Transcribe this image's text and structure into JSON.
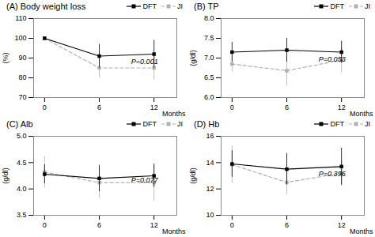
{
  "chart_data": [
    {
      "type": "line",
      "title": "(A) Body weight loss",
      "xlabel": "Months",
      "ylabel": "(%)",
      "x": [
        0,
        6,
        12
      ],
      "xlim": [
        -1.2,
        14.5
      ],
      "xticks": [
        0,
        6,
        12
      ],
      "ylim": [
        70,
        110
      ],
      "yticks": [
        70,
        80,
        90,
        100,
        110
      ],
      "series": [
        {
          "name": "DFT",
          "color": "#000000",
          "line_style": "solid",
          "marker": "square",
          "values": [
            100,
            91,
            92
          ],
          "errors": [
            0,
            6,
            7
          ]
        },
        {
          "name": "JI",
          "color": "#b0b0b0",
          "line_style": "dashed",
          "marker": "square",
          "values": [
            100,
            85,
            85
          ],
          "errors": [
            0,
            5,
            6
          ]
        }
      ],
      "annotations": [
        {
          "text": "P=0.001",
          "x": 9.5,
          "y": 87
        }
      ],
      "legend": "upper right"
    },
    {
      "type": "line",
      "title": "(B) TP",
      "xlabel": "Months",
      "ylabel": "(g/dl)",
      "x": [
        0,
        6,
        12
      ],
      "xlim": [
        -1.2,
        14.5
      ],
      "xticks": [
        0,
        6,
        12
      ],
      "ylim": [
        6.0,
        8.0
      ],
      "yticks": [
        {
          "value": 6.0,
          "label": "6.0"
        },
        6.5,
        {
          "value": 7.0,
          "label": "7.0"
        },
        7.5,
        {
          "value": 8.0,
          "label": "8.0"
        }
      ],
      "series": [
        {
          "name": "DFT",
          "color": "#000000",
          "line_style": "solid",
          "marker": "square",
          "values": [
            7.15,
            7.2,
            7.15
          ],
          "errors": [
            0.25,
            0.3,
            0.28
          ]
        },
        {
          "name": "JI",
          "color": "#b0b0b0",
          "line_style": "dashed",
          "marker": "square",
          "values": [
            6.85,
            6.68,
            6.95
          ],
          "errors": [
            0.2,
            0.38,
            0.32
          ]
        }
      ],
      "annotations": [
        {
          "text": "P=0.053",
          "x": 9.5,
          "y": 6.92
        }
      ],
      "legend": "upper right"
    },
    {
      "type": "line",
      "title": "(C) Alb",
      "xlabel": "Months",
      "ylabel": "(g/dl)",
      "x": [
        0,
        6,
        12
      ],
      "xlim": [
        -1.2,
        14.5
      ],
      "xticks": [
        0,
        6,
        12
      ],
      "ylim": [
        3.5,
        5.0
      ],
      "yticks": [
        3.5,
        {
          "value": 4.0,
          "label": "4.0"
        },
        4.5,
        {
          "value": 5.0,
          "label": "5.0"
        }
      ],
      "series": [
        {
          "name": "DFT",
          "color": "#000000",
          "line_style": "solid",
          "marker": "square",
          "values": [
            4.28,
            4.2,
            4.25
          ],
          "errors": [
            0.18,
            0.25,
            0.22
          ]
        },
        {
          "name": "JI",
          "color": "#b0b0b0",
          "line_style": "dashed",
          "marker": "square",
          "values": [
            4.32,
            4.12,
            4.12
          ],
          "errors": [
            0.3,
            0.3,
            0.35
          ]
        }
      ],
      "annotations": [
        {
          "text": "P=0.077",
          "x": 9.5,
          "y": 4.12
        }
      ],
      "legend": "upper right"
    },
    {
      "type": "line",
      "title": "(D) Hb",
      "xlabel": "Months",
      "ylabel": "(g/dl)",
      "x": [
        0,
        6,
        12
      ],
      "xlim": [
        -1.2,
        14.5
      ],
      "xticks": [
        0,
        6,
        12
      ],
      "ylim": [
        10,
        16
      ],
      "yticks": [
        10,
        12,
        14,
        16
      ],
      "series": [
        {
          "name": "DFT",
          "color": "#000000",
          "line_style": "solid",
          "marker": "square",
          "values": [
            13.9,
            13.5,
            13.7
          ],
          "errors": [
            1.0,
            1.2,
            1.4
          ]
        },
        {
          "name": "JI",
          "color": "#b0b0b0",
          "line_style": "dashed",
          "marker": "square",
          "values": [
            13.85,
            12.5,
            13.2
          ],
          "errors": [
            1.4,
            0.9,
            1.0
          ]
        }
      ],
      "annotations": [
        {
          "text": "P=0.396",
          "x": 9.5,
          "y": 13.0
        }
      ],
      "legend": "upper right"
    }
  ]
}
